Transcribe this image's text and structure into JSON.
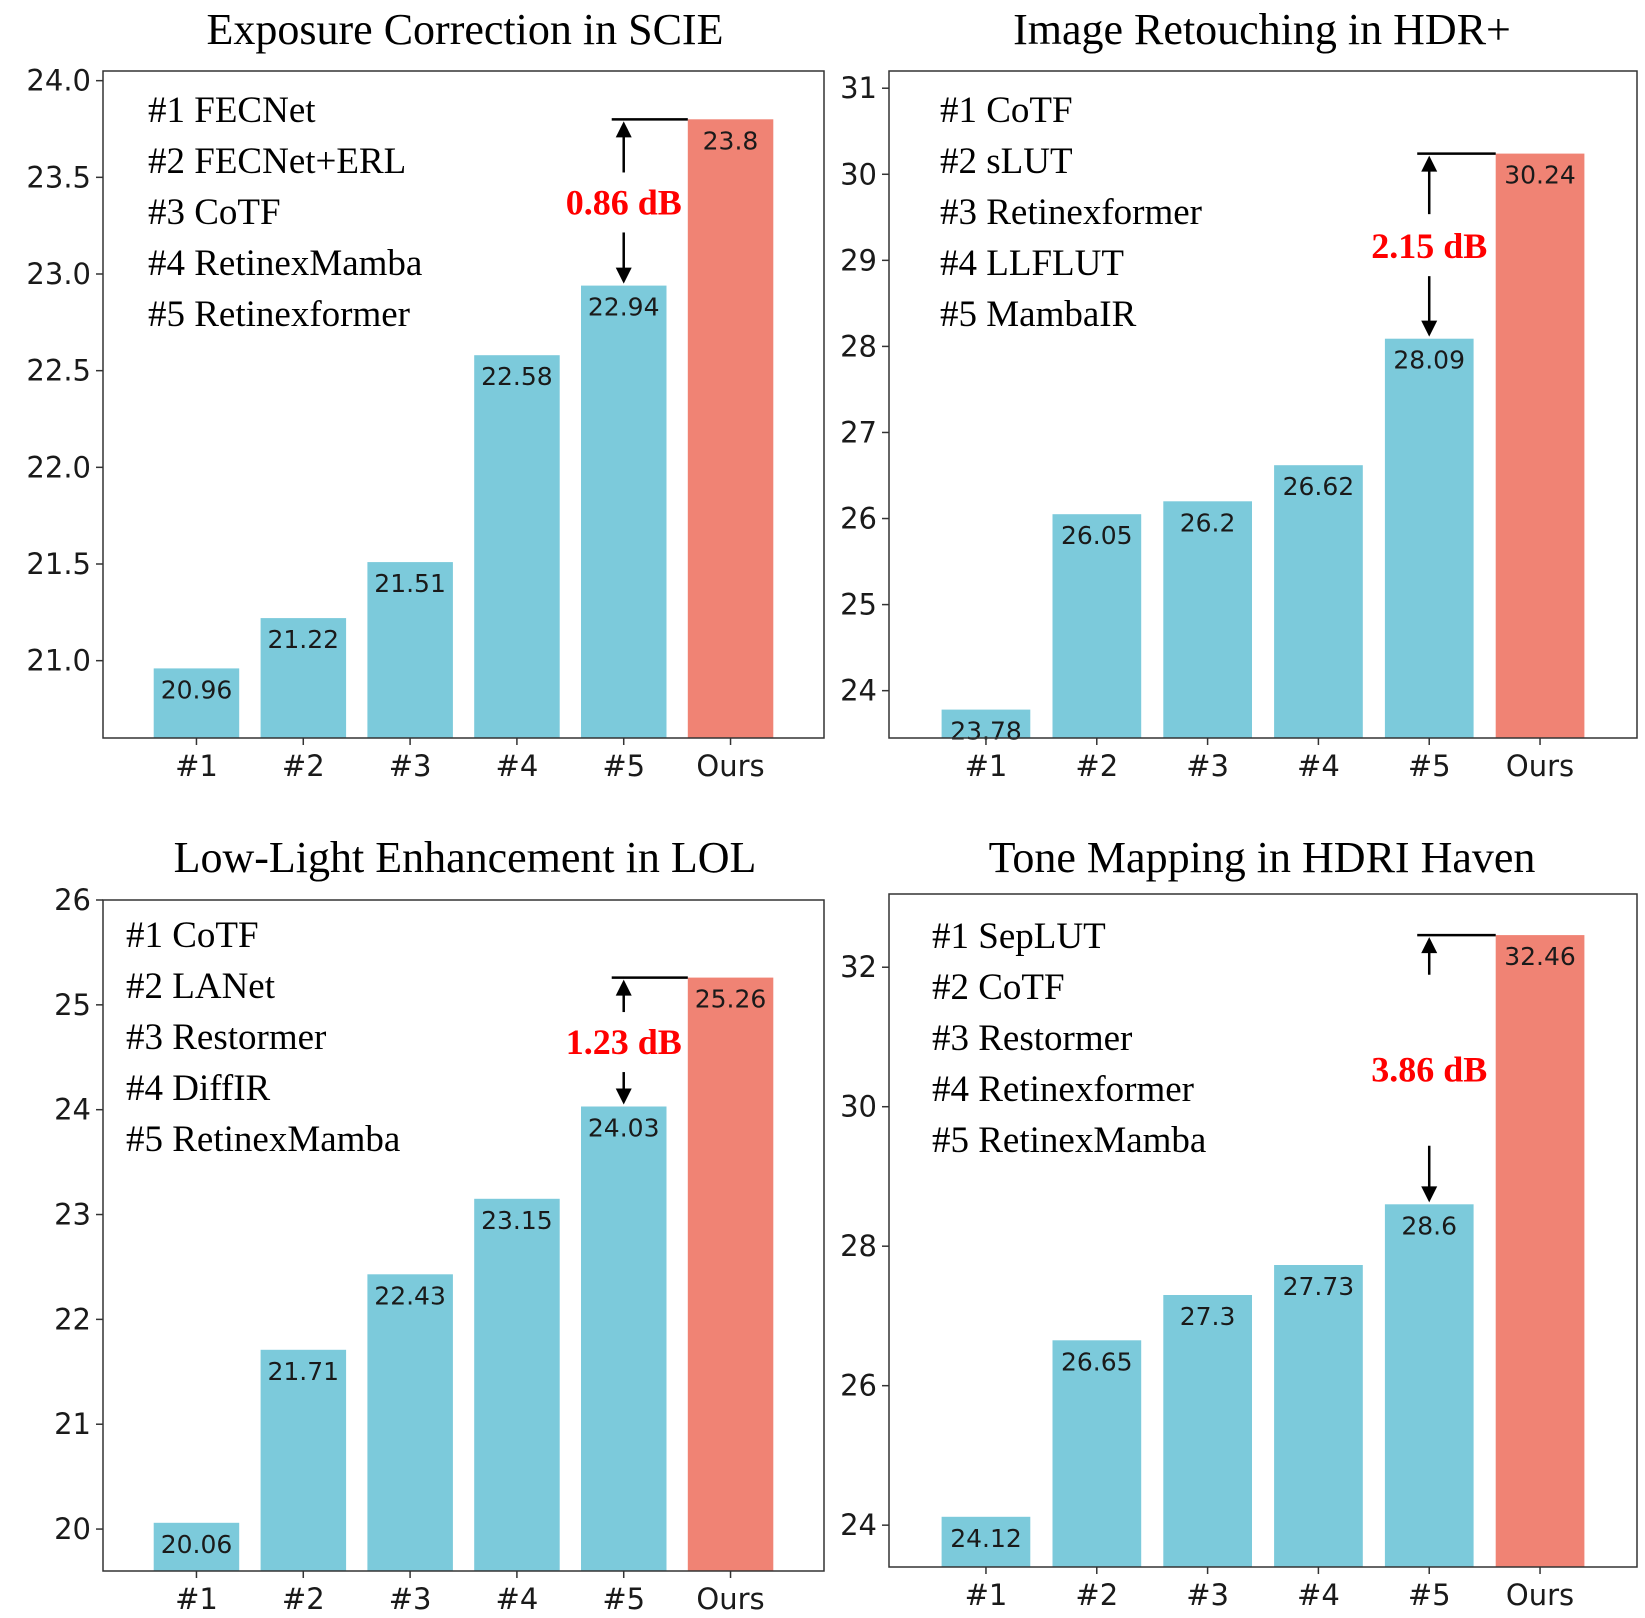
{
  "colors": {
    "bar": "#7ccadb",
    "ours": "#f08374",
    "gap_text": "#ff0000",
    "axis": "#333333"
  },
  "chart_data": [
    {
      "type": "bar",
      "title": "Exposure Correction in SCIE",
      "categories": [
        "#1",
        "#2",
        "#3",
        "#4",
        "#5",
        "Ours"
      ],
      "values": [
        20.96,
        21.22,
        21.51,
        22.58,
        22.94,
        23.8
      ],
      "value_labels": [
        "20.96",
        "21.22",
        "21.51",
        "22.58",
        "22.94",
        "23.8"
      ],
      "legend": [
        "#1 FECNet",
        "#2 FECNet+ERL",
        "#3 CoTF",
        "#4 RetinexMamba",
        "#5 Retinexformer"
      ],
      "yticks": [
        21.0,
        21.5,
        22.0,
        22.5,
        23.0,
        23.5,
        24.0
      ],
      "ytick_labels": [
        "21.0",
        "21.5",
        "22.0",
        "22.5",
        "23.0",
        "23.5",
        "24.0"
      ],
      "ylim": [
        20.6,
        24.05
      ],
      "gap_label": "0.86 dB",
      "xlabel": "",
      "ylabel": ""
    },
    {
      "type": "bar",
      "title": "Image Retouching in HDR+",
      "categories": [
        "#1",
        "#2",
        "#3",
        "#4",
        "#5",
        "Ours"
      ],
      "values": [
        23.78,
        26.05,
        26.2,
        26.62,
        28.09,
        30.24
      ],
      "value_labels": [
        "23.78",
        "26.05",
        "26.2",
        "26.62",
        "28.09",
        "30.24"
      ],
      "legend": [
        "#1 CoTF",
        "#2 sLUT",
        "#3 Retinexformer",
        "#4 LLFLUT",
        "#5 MambaIR"
      ],
      "yticks": [
        24,
        25,
        26,
        27,
        28,
        29,
        30,
        31
      ],
      "ytick_labels": [
        "24",
        "25",
        "26",
        "27",
        "28",
        "29",
        "30",
        "31"
      ],
      "ylim": [
        23.45,
        31.2
      ],
      "gap_label": "2.15 dB",
      "xlabel": "",
      "ylabel": ""
    },
    {
      "type": "bar",
      "title": "Low-Light Enhancement in LOL",
      "categories": [
        "#1",
        "#2",
        "#3",
        "#4",
        "#5",
        "Ours"
      ],
      "values": [
        20.06,
        21.71,
        22.43,
        23.15,
        24.03,
        25.26
      ],
      "value_labels": [
        "20.06",
        "21.71",
        "22.43",
        "23.15",
        "24.03",
        "25.26"
      ],
      "legend": [
        "#1 CoTF",
        "#2 LANet",
        "#3 Restormer",
        "#4 DiffIR",
        "#5 RetinexMamba"
      ],
      "yticks": [
        20,
        21,
        22,
        23,
        24,
        25,
        26
      ],
      "ytick_labels": [
        "20",
        "21",
        "22",
        "23",
        "24",
        "25",
        "26"
      ],
      "ylim": [
        19.6,
        26.0
      ],
      "gap_label": "1.23 dB",
      "xlabel": "",
      "ylabel": ""
    },
    {
      "type": "bar",
      "title": "Tone Mapping in HDRI Haven",
      "categories": [
        "#1",
        "#2",
        "#3",
        "#4",
        "#5",
        "Ours"
      ],
      "values": [
        24.12,
        26.65,
        27.3,
        27.73,
        28.6,
        32.46
      ],
      "value_labels": [
        "24.12",
        "26.65",
        "27.3",
        "27.73",
        "28.6",
        "32.46"
      ],
      "legend": [
        "#1 SepLUT",
        "#2 CoTF",
        "#3 Restormer",
        "#4 Retinexformer",
        "#5 RetinexMamba"
      ],
      "yticks": [
        24,
        26,
        28,
        30,
        32
      ],
      "ytick_labels": [
        "24",
        "26",
        "28",
        "30",
        "32"
      ],
      "ylim": [
        23.4,
        33.05
      ],
      "gap_label": "3.86 dB",
      "xlabel": "",
      "ylabel": ""
    }
  ]
}
